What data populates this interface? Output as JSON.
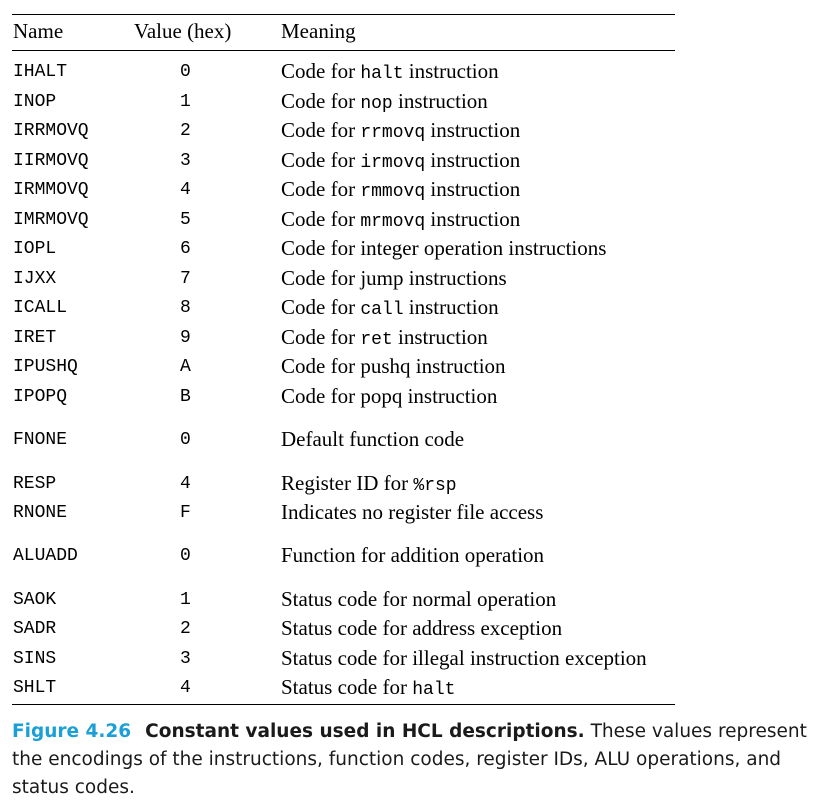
{
  "table": {
    "headers": {
      "name": "Name",
      "value": "Value (hex)",
      "meaning": "Meaning"
    },
    "rows": [
      {
        "name": "IHALT",
        "value": "0",
        "pre": "Code for ",
        "code": "halt",
        "post": " instruction"
      },
      {
        "name": "INOP",
        "value": "1",
        "pre": "Code for ",
        "code": "nop",
        "post": " instruction"
      },
      {
        "name": "IRRMOVQ",
        "value": "2",
        "pre": "Code for ",
        "code": "rrmovq",
        "post": " instruction"
      },
      {
        "name": "IIRMOVQ",
        "value": "3",
        "pre": "Code for ",
        "code": "irmovq",
        "post": " instruction"
      },
      {
        "name": "IRMMOVQ",
        "value": "4",
        "pre": "Code for ",
        "code": "rmmovq",
        "post": " instruction"
      },
      {
        "name": "IMRMOVQ",
        "value": "5",
        "pre": "Code for ",
        "code": "mrmovq",
        "post": " instruction"
      },
      {
        "name": "IOPL",
        "value": "6",
        "pre": "Code for integer operation instructions",
        "code": "",
        "post": ""
      },
      {
        "name": "IJXX",
        "value": "7",
        "pre": "Code for jump instructions",
        "code": "",
        "post": ""
      },
      {
        "name": "ICALL",
        "value": "8",
        "pre": "Code for ",
        "code": "call",
        "post": " instruction"
      },
      {
        "name": "IRET",
        "value": "9",
        "pre": "Code for ",
        "code": "ret",
        "post": " instruction"
      },
      {
        "name": "IPUSHQ",
        "value": "A",
        "pre": "Code for pushq instruction",
        "code": "",
        "post": ""
      },
      {
        "name": "IPOPQ",
        "value": "B",
        "pre": "Code for popq instruction",
        "code": "",
        "post": ""
      },
      {
        "name": "FNONE",
        "value": "0",
        "pre": "Default function code",
        "code": "",
        "post": ""
      },
      {
        "name": "RESP",
        "value": "4",
        "pre": "Register ID for ",
        "code": "%rsp",
        "post": ""
      },
      {
        "name": "RNONE",
        "value": "F",
        "pre": "Indicates no register file access",
        "code": "",
        "post": ""
      },
      {
        "name": "ALUADD",
        "value": "0",
        "pre": "Function for addition operation",
        "code": "",
        "post": ""
      },
      {
        "name": "SAOK",
        "value": "1",
        "pre": "Status code for normal operation",
        "code": "",
        "post": ""
      },
      {
        "name": "SADR",
        "value": "2",
        "pre": "Status code for address exception",
        "code": "",
        "post": ""
      },
      {
        "name": "SINS",
        "value": "3",
        "pre": "Status code for illegal instruction exception",
        "code": "",
        "post": ""
      },
      {
        "name": "SHLT",
        "value": "4",
        "pre": "Status code for ",
        "code": "halt",
        "post": ""
      }
    ]
  },
  "caption": {
    "figure_label": "Figure 4.26",
    "title": "Constant values used in HCL descriptions.",
    "text": " These values represent the encodings of the instructions, function codes, register IDs, ALU operations, and status codes."
  }
}
